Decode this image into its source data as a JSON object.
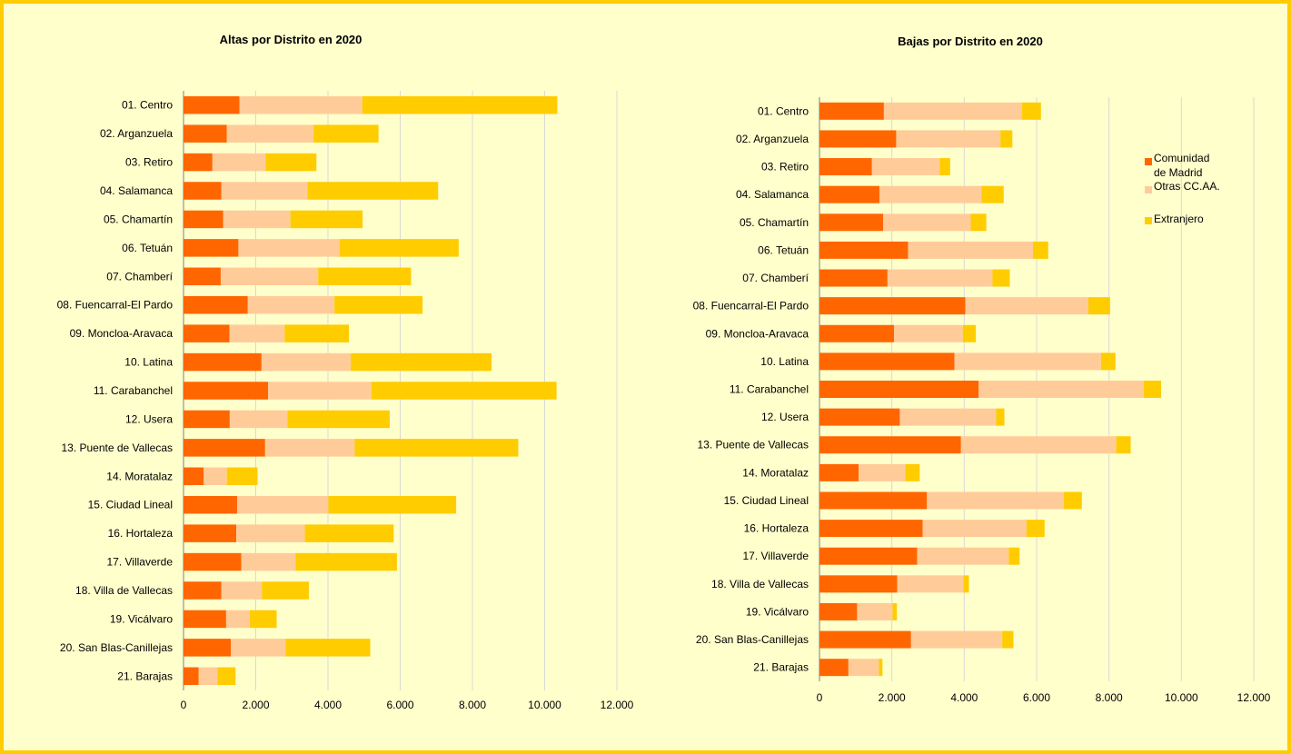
{
  "colors": {
    "background": "#ffffcc",
    "border": "#ffcc00",
    "comunidad": "#ff6600",
    "otras": "#ffcc99",
    "extranjero": "#ffcc00",
    "grid": "#d9d9d9"
  },
  "chart_data": [
    {
      "type": "bar",
      "orientation": "horizontal",
      "stacked": true,
      "title": "Altas por Distrito en 2020",
      "categories": [
        "01. Centro",
        "02. Arganzuela",
        "03. Retiro",
        "04. Salamanca",
        "05. Chamartín",
        "06. Tetuán",
        "07. Chamberí",
        "08. Fuencarral-El Pardo",
        "09. Moncloa-Aravaca",
        "10. Latina",
        "11. Carabanchel",
        "12. Usera",
        "13. Puente de Vallecas",
        "14. Moratalaz",
        "15. Ciudad Lineal",
        "16. Hortaleza",
        "17. Villaverde",
        "18. Villa de Vallecas",
        "19. Vicálvaro",
        "20. San Blas-Canillejas",
        "21. Barajas"
      ],
      "series": [
        {
          "name": "Comunidad de Madrid",
          "values": [
            1550,
            1200,
            800,
            1050,
            1100,
            1520,
            1030,
            1780,
            1270,
            2160,
            2340,
            1280,
            2260,
            560,
            1490,
            1460,
            1600,
            1050,
            1180,
            1310,
            420
          ]
        },
        {
          "name": "Otras CC.AA.",
          "values": [
            3400,
            2400,
            1470,
            2380,
            1860,
            2800,
            2700,
            2400,
            1530,
            2470,
            2860,
            1600,
            2480,
            640,
            2520,
            1900,
            1500,
            1120,
            650,
            1520,
            520
          ]
        },
        {
          "name": "Extranjero",
          "values": [
            5400,
            1800,
            1410,
            3620,
            2000,
            3300,
            2570,
            2440,
            1780,
            3900,
            5130,
            2830,
            4530,
            850,
            3540,
            2460,
            2810,
            1300,
            750,
            2340,
            500
          ]
        }
      ],
      "xlim": [
        0,
        12000
      ],
      "xticks": [
        "0",
        "2.000",
        "4.000",
        "6.000",
        "8.000",
        "10.000",
        "12.000"
      ],
      "grid": true
    },
    {
      "type": "bar",
      "orientation": "horizontal",
      "stacked": true,
      "title": "Bajas por Distrito en 2020",
      "categories": [
        "01. Centro",
        "02. Arganzuela",
        "03. Retiro",
        "04. Salamanca",
        "05. Chamartín",
        "06. Tetuán",
        "07. Chamberí",
        "08. Fuencarral-El Pardo",
        "09. Moncloa-Aravaca",
        "10. Latina",
        "11. Carabanchel",
        "12. Usera",
        "13. Puente de Vallecas",
        "14. Moratalaz",
        "15. Ciudad Lineal",
        "16. Hortaleza",
        "17. Villaverde",
        "18. Villa de Vallecas",
        "19. Vicálvaro",
        "20. San Blas-Canillejas",
        "21. Barajas"
      ],
      "series": [
        {
          "name": "Comunidad de Madrid",
          "values": [
            1780,
            2120,
            1450,
            1660,
            1760,
            2450,
            1880,
            4030,
            2060,
            3730,
            4400,
            2220,
            3910,
            1080,
            2970,
            2850,
            2700,
            2150,
            1040,
            2530,
            800
          ]
        },
        {
          "name": "Otras CC.AA.",
          "values": [
            3820,
            2880,
            1870,
            2820,
            2420,
            3450,
            2900,
            3400,
            1900,
            4050,
            4560,
            2660,
            4290,
            1290,
            3780,
            2870,
            2530,
            1830,
            980,
            2520,
            840
          ]
        },
        {
          "name": "Extranjero",
          "values": [
            520,
            330,
            290,
            610,
            430,
            420,
            480,
            600,
            360,
            400,
            480,
            230,
            400,
            400,
            500,
            500,
            300,
            150,
            120,
            310,
            100
          ]
        }
      ],
      "xlim": [
        0,
        12000
      ],
      "xticks": [
        "0",
        "2.000",
        "4.000",
        "6.000",
        "8.000",
        "10.000",
        "12.000"
      ],
      "grid": true,
      "legend": {
        "position": "right",
        "entries": [
          "Comunidad de Madrid",
          "Otras CC.AA.",
          "Extranjero"
        ]
      }
    }
  ],
  "legend": {
    "line1": "Comunidad",
    "line2": "de Madrid",
    "otras": "Otras CC.AA.",
    "extranjero": "Extranjero"
  }
}
